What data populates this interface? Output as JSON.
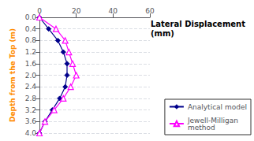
{
  "chart_data": {
    "type": "line",
    "title": "Lateral Displacement",
    "subtitle": "(mm)",
    "y_label": "Depth from the Top (m)",
    "y_label_color": "#FF8C00",
    "series": [
      {
        "name": "Analytical model",
        "color": "#00008B",
        "marker": "diamond",
        "x": [
          0,
          5,
          10,
          13,
          15,
          15,
          14,
          11,
          7,
          3,
          0
        ],
        "values": [
          0,
          0.4,
          0.8,
          1.2,
          1.6,
          2.0,
          2.4,
          2.8,
          3.2,
          3.6,
          4.0
        ]
      },
      {
        "name": "Jewell-Milligan\nmethod",
        "color": "#FF00FF",
        "marker": "triangle-open",
        "x": [
          0,
          9,
          14,
          16,
          18,
          20,
          17,
          13,
          8,
          3,
          0
        ],
        "values": [
          0,
          0.4,
          0.8,
          1.2,
          1.6,
          2.0,
          2.4,
          2.8,
          3.2,
          3.6,
          4.0
        ]
      }
    ],
    "xlim": [
      0,
      60
    ],
    "xticks": [
      0,
      20,
      40,
      60
    ],
    "ylim": [
      4,
      0
    ],
    "yticks": [
      {
        "value": 0,
        "label": "0.0"
      },
      0.4,
      0.8,
      1.2,
      1.6,
      {
        "value": 2.0,
        "label": "2.0"
      },
      2.4,
      2.8,
      3.2,
      3.6,
      {
        "value": 4.0,
        "label": "4.0"
      }
    ],
    "grid": "y",
    "legend": "lower right"
  }
}
